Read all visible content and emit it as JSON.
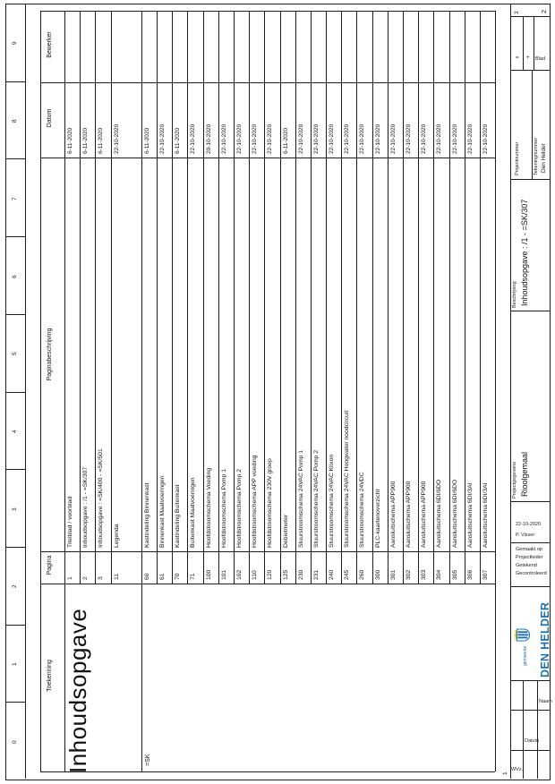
{
  "page": {
    "title": "Inhoudsopgave"
  },
  "frame": {
    "left_markers": [
      "9",
      "8",
      "7",
      "6",
      "5",
      "4",
      "3",
      "2",
      "1",
      "0"
    ],
    "top_marker": "3",
    "bottom_marker": "1"
  },
  "table": {
    "headers": {
      "toekenning": "Toekenning",
      "pagina": "Pagina",
      "beschrijving": "Paginabeschrijving",
      "datum": "Datum",
      "bewerker": "Bewerker"
    },
    "group_label": "=SK",
    "rows": [
      {
        "pagina": "1",
        "beschrijving": "Titelblad / voorblad",
        "datum": "6-11-2020",
        "bewerker": ""
      },
      {
        "pagina": "2",
        "beschrijving": "Inhoudsopgave : /1 - =SK/307",
        "datum": "6-11-2020",
        "bewerker": ""
      },
      {
        "pagina": "3",
        "beschrijving": "Inhoudsopgave : =SK/400 - =SK/501",
        "datum": "6-11-2020",
        "bewerker": ""
      },
      {
        "pagina": "11",
        "beschrijving": "Legenda",
        "datum": "22-10-2020",
        "bewerker": ""
      },
      {
        "pagina": "60",
        "beschrijving": "Kastindeling Binnenkast",
        "datum": "6-11-2020",
        "bewerker": "",
        "group_start": true
      },
      {
        "pagina": "61",
        "beschrijving": "Binnenkast Maatvoeringen",
        "datum": "22-10-2020",
        "bewerker": ""
      },
      {
        "pagina": "70",
        "beschrijving": "Kastindeling Buitenkast",
        "datum": "6-11-2020",
        "bewerker": ""
      },
      {
        "pagina": "71",
        "beschrijving": "Buitenkast Maatvoeringen",
        "datum": "22-10-2020",
        "bewerker": ""
      },
      {
        "pagina": "100",
        "beschrijving": "Hoofdstroomschema Voeding",
        "datum": "20-10-2020",
        "bewerker": ""
      },
      {
        "pagina": "101",
        "beschrijving": "Hoofdstroomschema Pomp 1",
        "datum": "22-10-2020",
        "bewerker": ""
      },
      {
        "pagina": "102",
        "beschrijving": "Hoofdstroomschema Pomp 2",
        "datum": "22-10-2020",
        "bewerker": ""
      },
      {
        "pagina": "110",
        "beschrijving": "Hoofdstroomschema APP voeding",
        "datum": "22-10-2020",
        "bewerker": ""
      },
      {
        "pagina": "120",
        "beschrijving": "Hoofdstroomschema 230V groep",
        "datum": "22-10-2020",
        "bewerker": ""
      },
      {
        "pagina": "125",
        "beschrijving": "Debietmeter",
        "datum": "6-11-2020",
        "bewerker": ""
      },
      {
        "pagina": "230",
        "beschrijving": "Stuurstroomschema 24VAC Pomp 1",
        "datum": "22-10-2020",
        "bewerker": ""
      },
      {
        "pagina": "231",
        "beschrijving": "Stuurstroomschema 24VAC Pomp 2",
        "datum": "22-10-2020",
        "bewerker": ""
      },
      {
        "pagina": "240",
        "beschrijving": "Stuurstroomschema 24VAC Klixon",
        "datum": "22-10-2020",
        "bewerker": ""
      },
      {
        "pagina": "245",
        "beschrijving": "Stuurstroomschema 24VAC Hoogwater noodcircuit",
        "datum": "22-10-2020",
        "bewerker": ""
      },
      {
        "pagina": "260",
        "beschrijving": "Stuurstroomschema 24VDC",
        "datum": "22-10-2020",
        "bewerker": ""
      },
      {
        "pagina": "300",
        "beschrijving": "PLC-kaartenoverzicht",
        "datum": "22-10-2020",
        "bewerker": ""
      },
      {
        "pagina": "301",
        "beschrijving": "Aansluitschema APP900",
        "datum": "22-10-2020",
        "bewerker": ""
      },
      {
        "pagina": "302",
        "beschrijving": "Aansluitschema APP900",
        "datum": "22-10-2020",
        "bewerker": ""
      },
      {
        "pagina": "303",
        "beschrijving": "Aansluitschema APP900",
        "datum": "22-10-2020",
        "bewerker": ""
      },
      {
        "pagina": "304",
        "beschrijving": "Aansluitschema 6DI/6DO",
        "datum": "22-10-2020",
        "bewerker": ""
      },
      {
        "pagina": "305",
        "beschrijving": "Aansluitschema 6DI/6DO",
        "datum": "22-10-2020",
        "bewerker": ""
      },
      {
        "pagina": "306",
        "beschrijving": "Aansluitschema 6DI/3AI",
        "datum": "22-10-2020",
        "bewerker": ""
      },
      {
        "pagina": "307",
        "beschrijving": "Aansluitschema 6DI/3AI",
        "datum": "22-10-2020",
        "bewerker": ""
      }
    ]
  },
  "title_block": {
    "eq_label": "=",
    "plus_label": "+",
    "blad_label": "Blad",
    "blad_value": "2",
    "projectnummer_label": "Projectnummer",
    "tekeningnummer_label": "Tekeningnummer",
    "tekeningnummer_value": "Den Helder",
    "beschrijving_label": "Beschrijving",
    "beschrijving_value": "Inhoudsopgave : /1 - =SK/307",
    "projectgegevens_label": "Projectgegevens",
    "projectgegevens_value": "Rioolgemaal",
    "gemaakt_op_label": "Gemaakt op",
    "gemaakt_op_value": "22-10-2020",
    "projectleider_label": "Projectleider",
    "projectleider_value": "",
    "getekend_label": "Getekend",
    "getekend_value": "P. Visser",
    "gecontroleerd_label": "Gecontroleerd",
    "gecontroleerd_value": "",
    "logo": {
      "gemeente": "gemeente",
      "name": "DEN HELDER",
      "blue": "#1d6fb0",
      "yellow": "#f2c200"
    },
    "revision": {
      "wvz": "WVz.",
      "datum": "Datum",
      "naam": "Naam"
    }
  }
}
